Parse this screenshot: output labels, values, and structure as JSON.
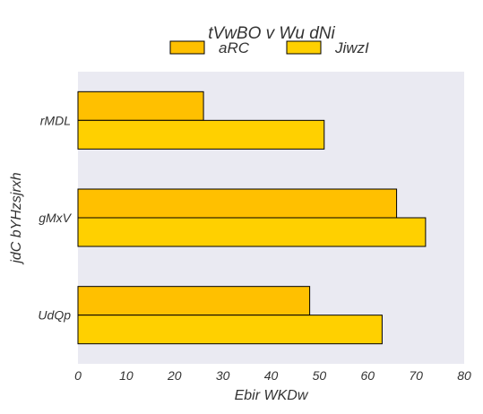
{
  "chart_data": {
    "type": "bar",
    "orientation": "horizontal",
    "title": "tVwBO v Wu dNi",
    "xlabel": "Ebir WKDw",
    "ylabel": "jdC bYHzsjrxh",
    "categories": [
      "rMDL",
      "gMxV",
      "UdQp"
    ],
    "series": [
      {
        "name": "aRC",
        "color": "#ffc000",
        "values": [
          26,
          66,
          48
        ]
      },
      {
        "name": "JiwzI",
        "color": "#ffd000",
        "values": [
          51,
          72,
          63
        ]
      }
    ],
    "xlim": [
      0,
      80
    ],
    "xticks": [
      "0",
      "10",
      "20",
      "30",
      "40",
      "50",
      "60",
      "70",
      "80"
    ],
    "grid": false,
    "legend_position": "top-center",
    "background_color": "#eaeaf2",
    "bar_edge_color": "#000000"
  }
}
